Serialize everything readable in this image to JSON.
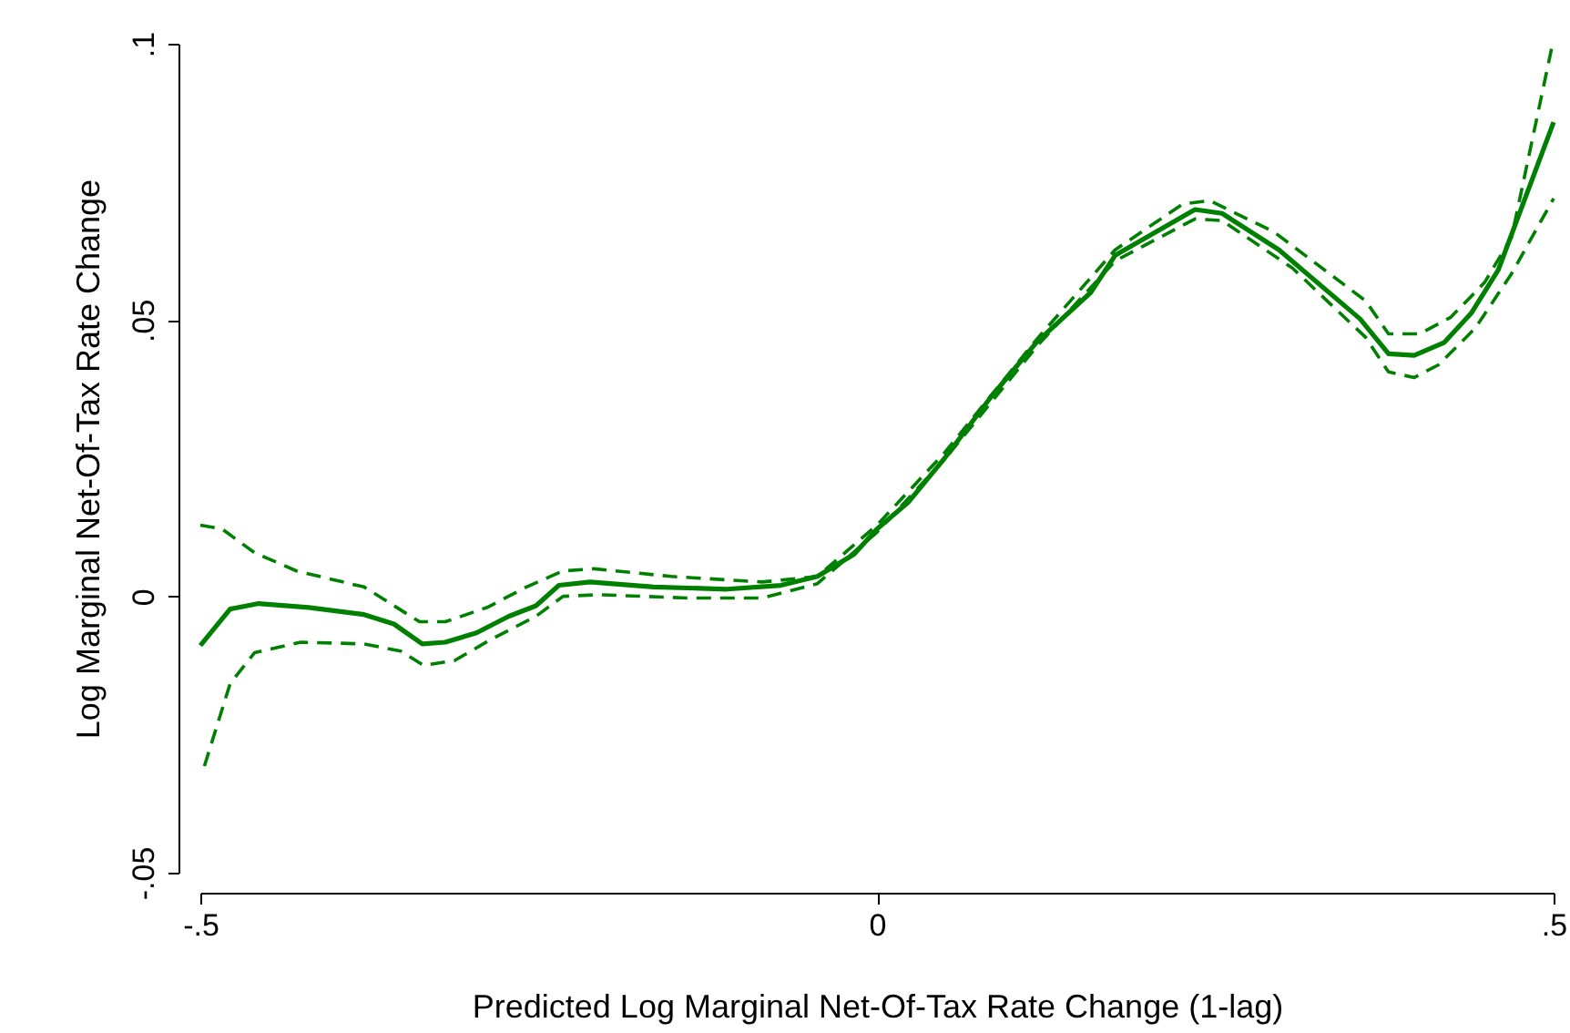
{
  "chart_data": {
    "type": "line",
    "xlabel": "Predicted Log Marginal Net-Of-Tax Rate Change (1-lag)",
    "ylabel": "Log Marginal Net-Of-Tax Rate Change",
    "xlim": [
      -0.5,
      0.5
    ],
    "ylim": [
      -0.05,
      0.1
    ],
    "xticks": [
      {
        "value": -0.5,
        "label": "-.5"
      },
      0,
      {
        "value": 0.5,
        "label": ".5"
      }
    ],
    "yticks": [
      {
        "value": -0.05,
        "label": "-.05"
      },
      0,
      {
        "value": 0.05,
        "label": ".05"
      },
      {
        "value": 0.1,
        "label": ".1"
      }
    ],
    "grid": false,
    "series": [
      {
        "color": "#008000",
        "line_style": "solid",
        "x": [
          -0.5,
          -0.478,
          -0.457,
          -0.42,
          -0.379,
          -0.357,
          -0.336,
          -0.319,
          -0.296,
          -0.272,
          -0.252,
          -0.235,
          -0.212,
          -0.165,
          -0.111,
          -0.071,
          -0.044,
          -0.017,
          0,
          0.023,
          0.05,
          0.084,
          0.118,
          0.158,
          0.176,
          0.235,
          0.255,
          0.297,
          0.357,
          0.378,
          0.397,
          0.419,
          0.439,
          0.459,
          0.5
        ],
        "values": [
          -0.0089,
          -0.0023,
          -0.0013,
          -0.002,
          -0.0033,
          -0.005,
          -0.0086,
          -0.0083,
          -0.0066,
          -0.0036,
          -0.0017,
          0.002,
          0.0026,
          0.0017,
          0.0013,
          0.002,
          0.0036,
          0.0076,
          0.0122,
          0.017,
          0.025,
          0.036,
          0.046,
          0.055,
          0.0617,
          0.07,
          0.0693,
          0.0627,
          0.0502,
          0.0439,
          0.0436,
          0.0459,
          0.0512,
          0.059,
          0.0858
        ]
      },
      {
        "color": "#008000",
        "line_style": "dashed",
        "x": [
          -0.5,
          -0.484,
          -0.46,
          -0.429,
          -0.379,
          -0.338,
          -0.319,
          -0.288,
          -0.259,
          -0.232,
          -0.209,
          -0.152,
          -0.085,
          -0.044,
          0,
          0.05,
          0.118,
          0.176,
          0.226,
          0.246,
          0.293,
          0.361,
          0.378,
          0.401,
          0.424,
          0.449,
          0.469,
          0.499
        ],
        "values": [
          0.0129,
          0.0122,
          0.0079,
          0.0046,
          0.0017,
          -0.0046,
          -0.0046,
          -0.002,
          0.0017,
          0.0046,
          0.005,
          0.0036,
          0.0026,
          0.0036,
          0.0129,
          0.026,
          0.0465,
          0.0627,
          0.071,
          0.0716,
          0.066,
          0.0535,
          0.0475,
          0.0475,
          0.0505,
          0.0568,
          0.065,
          0.0997
        ]
      },
      {
        "color": "#008000",
        "line_style": "dashed",
        "x": [
          -0.497,
          -0.478,
          -0.46,
          -0.426,
          -0.379,
          -0.352,
          -0.335,
          -0.312,
          -0.286,
          -0.252,
          -0.232,
          -0.206,
          -0.139,
          -0.085,
          -0.044,
          0,
          0.05,
          0.118,
          0.176,
          0.235,
          0.255,
          0.307,
          0.361,
          0.378,
          0.397,
          0.415,
          0.442,
          0.469,
          0.5
        ],
        "values": [
          -0.0307,
          -0.0158,
          -0.0102,
          -0.0083,
          -0.0086,
          -0.0099,
          -0.0125,
          -0.0116,
          -0.0079,
          -0.0036,
          0,
          0.0003,
          -0.0003,
          -0.0003,
          0.0023,
          0.0116,
          0.0248,
          0.0452,
          0.0607,
          0.0683,
          0.068,
          0.0594,
          0.0469,
          0.0406,
          0.0396,
          0.0419,
          0.0485,
          0.0584,
          0.072
        ]
      }
    ]
  }
}
